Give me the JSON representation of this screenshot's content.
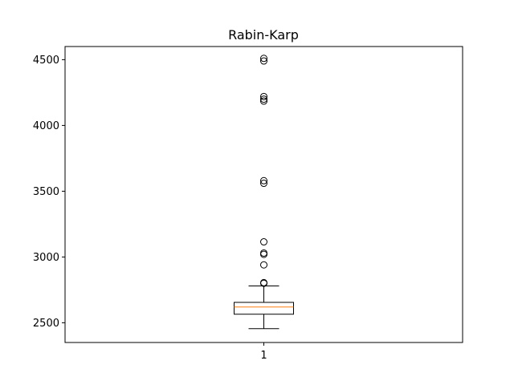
{
  "chart_data": {
    "type": "box",
    "title": "Rabin-Karp",
    "xlabel": "",
    "ylabel": "",
    "categories": [
      "1"
    ],
    "ylim": [
      2350,
      4600
    ],
    "yticks": [
      2500,
      3000,
      3500,
      4000,
      4500
    ],
    "grid": false,
    "colors": {
      "median": "#ff7f0e",
      "box": "#000000"
    },
    "boxes": [
      {
        "label": "1",
        "whisker_low": 2455,
        "q1": 2565,
        "median": 2620,
        "q3": 2655,
        "whisker_high": 2780,
        "outliers": [
          2800,
          2805,
          2940,
          3020,
          3030,
          3115,
          3560,
          3580,
          4185,
          4200,
          4220,
          4490,
          4510
        ]
      }
    ]
  }
}
